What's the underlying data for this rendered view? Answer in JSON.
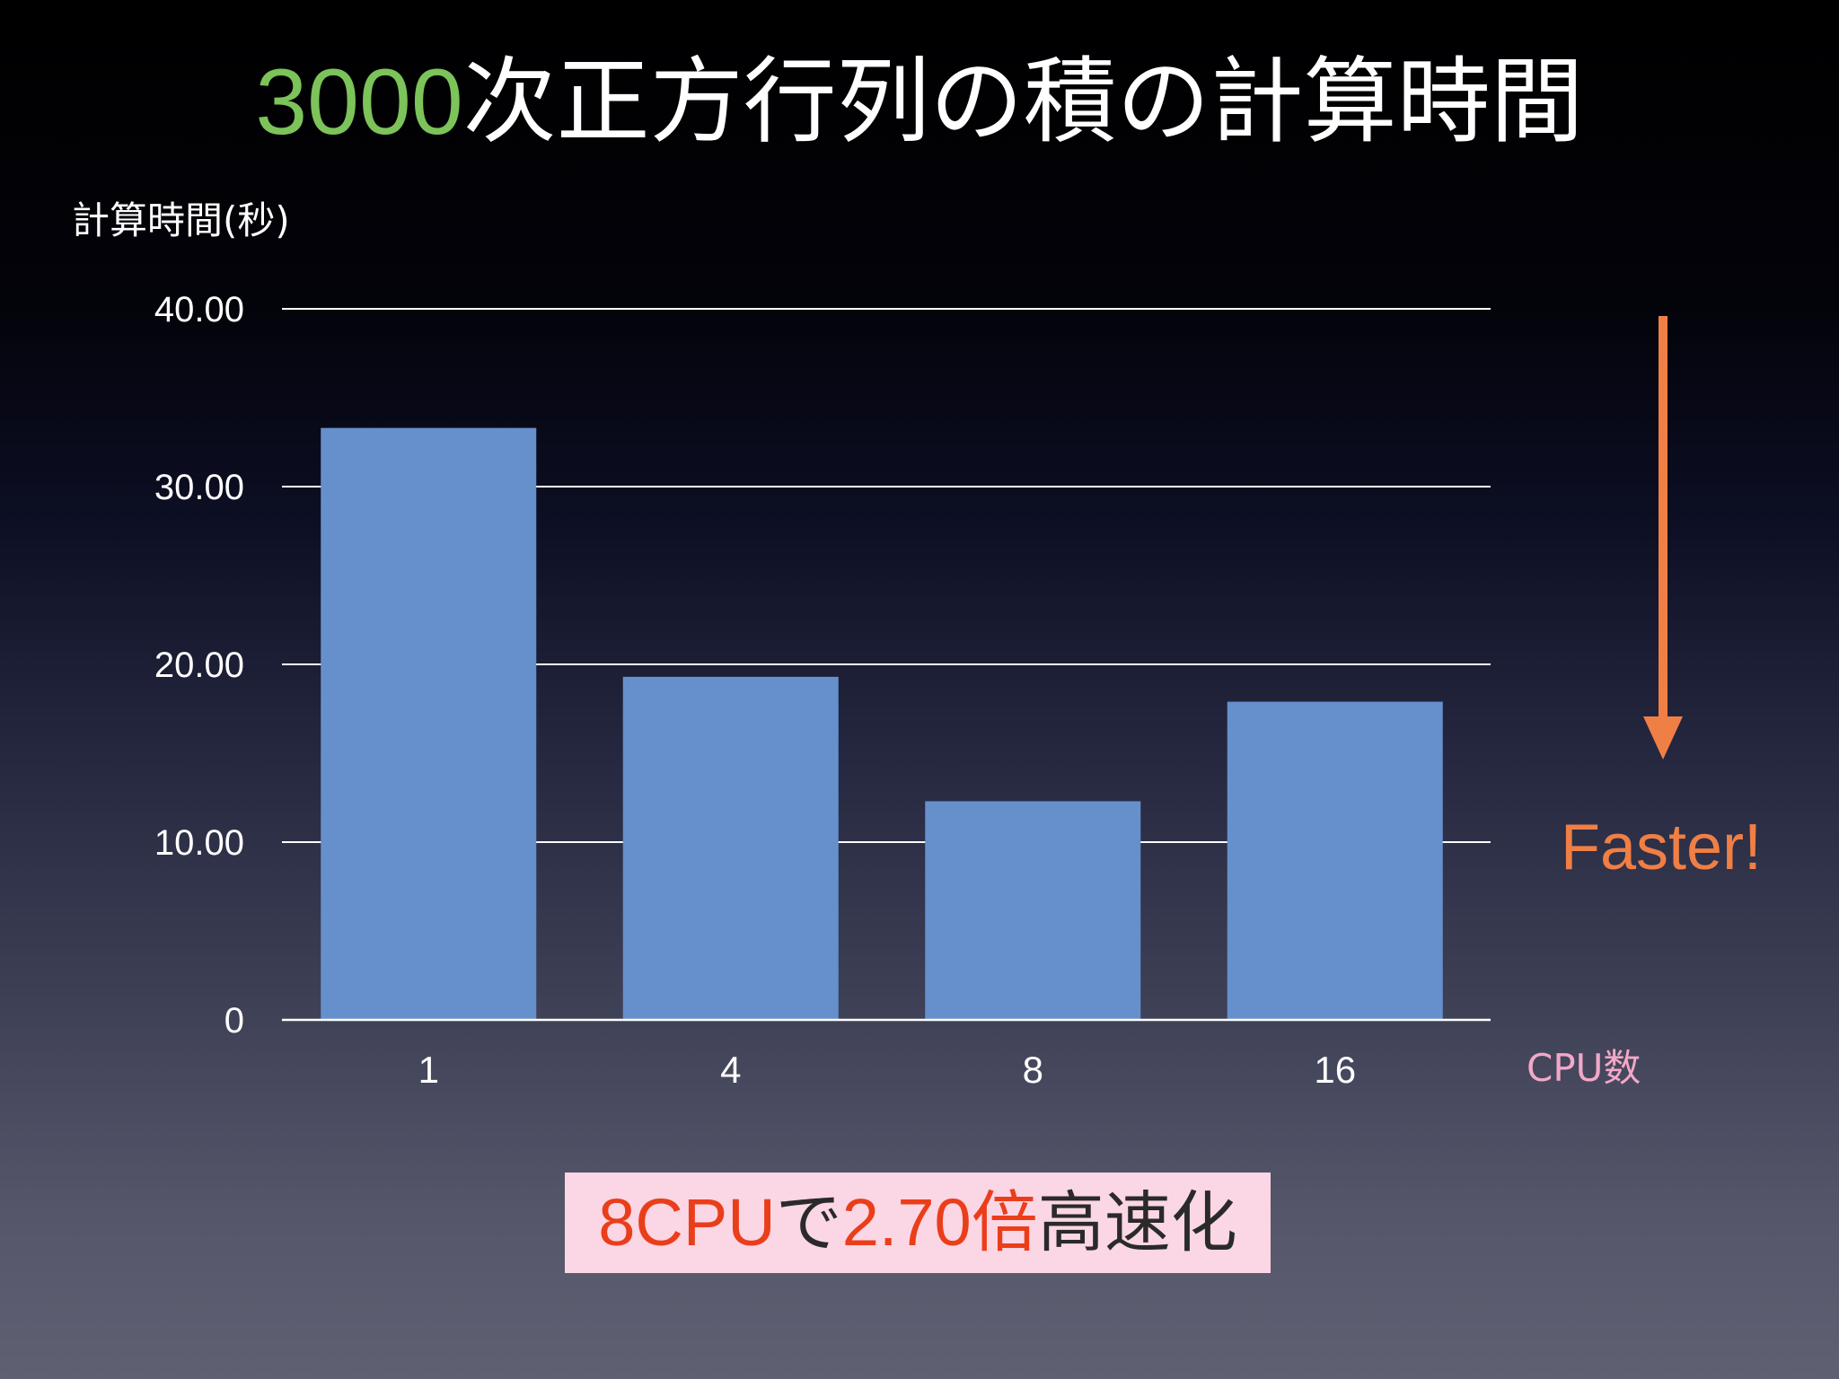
{
  "title": {
    "number": "3000",
    "text": "次正方行列の積の計算時間"
  },
  "callout": {
    "part1": "8CPU",
    "part2": "で",
    "part3": "2.70倍",
    "part4": "高速化"
  },
  "annotation": {
    "text": "Faster!",
    "color": "#f07f45",
    "arrow_direction": "down"
  },
  "chart_data": {
    "type": "bar",
    "title": "3000次正方行列の積の計算時間",
    "ylabel": "計算時間(秒)",
    "xlabel": "CPU数",
    "categories": [
      "1",
      "4",
      "8",
      "16"
    ],
    "values": [
      33.3,
      19.3,
      12.3,
      17.9
    ],
    "ylim": [
      0,
      40
    ],
    "yticks": [
      0,
      10,
      20,
      30,
      40
    ],
    "ytick_labels": [
      "0",
      "10.00",
      "20.00",
      "30.00",
      "40.00"
    ],
    "grid": true,
    "bar_color": "#6690cc",
    "legend": "none"
  }
}
